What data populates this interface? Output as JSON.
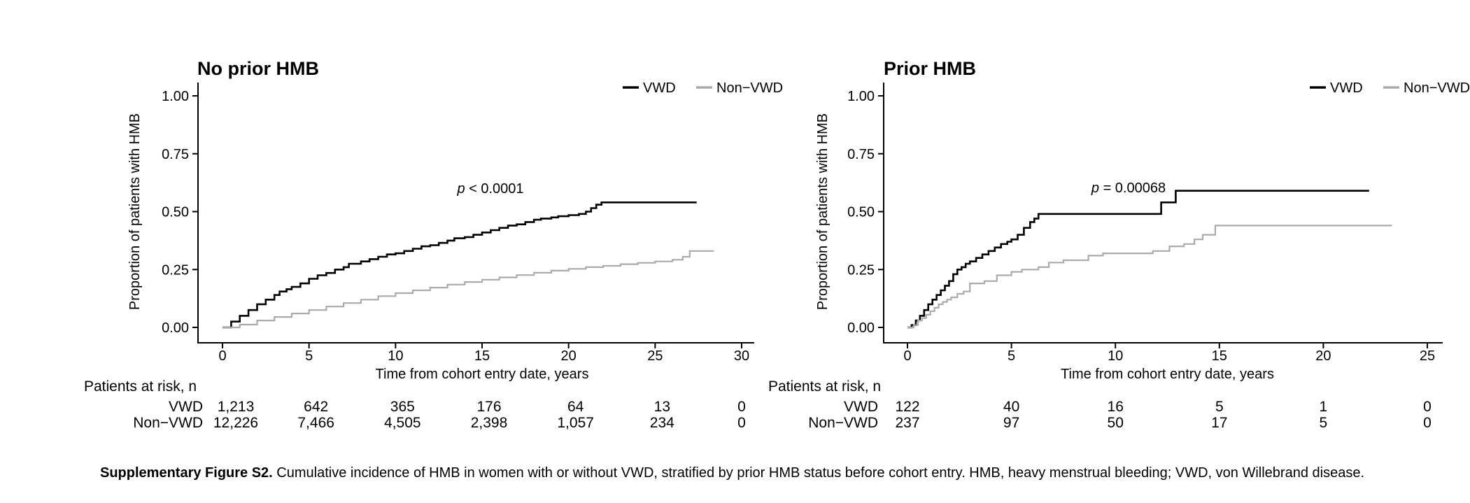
{
  "figure": {
    "caption_bold": "Supplementary Figure S2.",
    "caption_rest": " Cumulative incidence of HMB in women with or without VWD, stratified by prior HMB status before cohort entry. HMB, heavy menstrual bleeding; VWD, von Willebrand disease."
  },
  "colors": {
    "vwd": "#000000",
    "non_vwd": "#aaaaaa",
    "axis": "#000000"
  },
  "chart_data": [
    {
      "type": "line",
      "style": "step",
      "title": "No prior HMB",
      "p_italic": "p",
      "p_rest": " < 0.0001",
      "xlabel": "Time from cohort entry date, years",
      "ylabel": "Proportion of patients with HMB",
      "xlim": [
        0,
        30
      ],
      "ylim": [
        0,
        1
      ],
      "x_ticks": [
        0,
        5,
        10,
        15,
        20,
        25,
        30
      ],
      "y_ticks": [
        0,
        0.25,
        0.5,
        0.75,
        1
      ],
      "y_tick_labels": [
        "0.00",
        "0.25",
        "0.50",
        "0.75",
        "1.00"
      ],
      "legend_position": "top-right",
      "grid": false,
      "series": [
        {
          "name": "VWD",
          "color_key": "vwd",
          "points": [
            [
              0,
              0
            ],
            [
              0.5,
              0.025
            ],
            [
              1,
              0.05
            ],
            [
              1.5,
              0.075
            ],
            [
              2,
              0.1
            ],
            [
              2.5,
              0.12
            ],
            [
              3,
              0.14
            ],
            [
              3.3,
              0.155
            ],
            [
              3.7,
              0.165
            ],
            [
              4,
              0.175
            ],
            [
              4.5,
              0.19
            ],
            [
              5,
              0.21
            ],
            [
              5.5,
              0.225
            ],
            [
              6,
              0.235
            ],
            [
              6.5,
              0.25
            ],
            [
              7,
              0.26
            ],
            [
              7.3,
              0.275
            ],
            [
              8,
              0.285
            ],
            [
              8.5,
              0.295
            ],
            [
              9,
              0.305
            ],
            [
              9.5,
              0.315
            ],
            [
              10,
              0.32
            ],
            [
              10.5,
              0.33
            ],
            [
              11,
              0.34
            ],
            [
              11.5,
              0.35
            ],
            [
              12,
              0.355
            ],
            [
              12.5,
              0.365
            ],
            [
              13,
              0.375
            ],
            [
              13.4,
              0.385
            ],
            [
              14,
              0.39
            ],
            [
              14.5,
              0.4
            ],
            [
              15,
              0.41
            ],
            [
              15.5,
              0.42
            ],
            [
              16,
              0.43
            ],
            [
              16.5,
              0.44
            ],
            [
              17,
              0.445
            ],
            [
              17.5,
              0.455
            ],
            [
              18,
              0.465
            ],
            [
              18.4,
              0.47
            ],
            [
              19,
              0.475
            ],
            [
              19.4,
              0.48
            ],
            [
              20,
              0.485
            ],
            [
              20.6,
              0.49
            ],
            [
              21,
              0.5
            ],
            [
              21.3,
              0.515
            ],
            [
              21.6,
              0.53
            ],
            [
              21.9,
              0.54
            ],
            [
              27.4,
              0.54
            ]
          ]
        },
        {
          "name": "Non−VWD",
          "color_key": "non_vwd",
          "points": [
            [
              0,
              0
            ],
            [
              1,
              0.012
            ],
            [
              2,
              0.03
            ],
            [
              3,
              0.045
            ],
            [
              4,
              0.06
            ],
            [
              5,
              0.075
            ],
            [
              6,
              0.09
            ],
            [
              7,
              0.105
            ],
            [
              8,
              0.12
            ],
            [
              9,
              0.135
            ],
            [
              10,
              0.148
            ],
            [
              11,
              0.16
            ],
            [
              12,
              0.172
            ],
            [
              13,
              0.185
            ],
            [
              14,
              0.196
            ],
            [
              15,
              0.206
            ],
            [
              16,
              0.216
            ],
            [
              17,
              0.226
            ],
            [
              18,
              0.236
            ],
            [
              19,
              0.245
            ],
            [
              20,
              0.253
            ],
            [
              21,
              0.26
            ],
            [
              22,
              0.266
            ],
            [
              23,
              0.273
            ],
            [
              24,
              0.279
            ],
            [
              25,
              0.285
            ],
            [
              26,
              0.292
            ],
            [
              26.6,
              0.305
            ],
            [
              27,
              0.33
            ],
            [
              28.4,
              0.33
            ]
          ]
        }
      ],
      "risk_table": {
        "header": "Patients at risk, n",
        "time_points": [
          0,
          5,
          10,
          15,
          20,
          25,
          30
        ],
        "rows": [
          {
            "name": "VWD",
            "counts": [
              "1,213",
              "642",
              "365",
              "176",
              "64",
              "13",
              "0"
            ]
          },
          {
            "name": "Non−VWD",
            "counts": [
              "12,226",
              "7,466",
              "4,505",
              "2,398",
              "1,057",
              "234",
              "0"
            ]
          }
        ]
      }
    },
    {
      "type": "line",
      "style": "step",
      "title": "Prior HMB",
      "p_italic": "p",
      "p_rest": " = 0.00068",
      "xlabel": "Time from cohort entry date, years",
      "ylabel": "Proportion of patients with HMB",
      "xlim": [
        0,
        25
      ],
      "ylim": [
        0,
        1
      ],
      "x_ticks": [
        0,
        5,
        10,
        15,
        20,
        25
      ],
      "y_ticks": [
        0,
        0.25,
        0.5,
        0.75,
        1
      ],
      "y_tick_labels": [
        "0.00",
        "0.25",
        "0.50",
        "0.75",
        "1.00"
      ],
      "legend_position": "top-right",
      "grid": false,
      "series": [
        {
          "name": "VWD",
          "color_key": "vwd",
          "points": [
            [
              0,
              0
            ],
            [
              0.2,
              0.01
            ],
            [
              0.4,
              0.03
            ],
            [
              0.6,
              0.05
            ],
            [
              0.8,
              0.075
            ],
            [
              1.0,
              0.1
            ],
            [
              1.2,
              0.12
            ],
            [
              1.4,
              0.14
            ],
            [
              1.6,
              0.16
            ],
            [
              1.8,
              0.18
            ],
            [
              2.0,
              0.2
            ],
            [
              2.2,
              0.23
            ],
            [
              2.4,
              0.25
            ],
            [
              2.6,
              0.26
            ],
            [
              2.8,
              0.275
            ],
            [
              3.0,
              0.285
            ],
            [
              3.3,
              0.3
            ],
            [
              3.6,
              0.315
            ],
            [
              3.9,
              0.33
            ],
            [
              4.2,
              0.345
            ],
            [
              4.5,
              0.36
            ],
            [
              4.8,
              0.37
            ],
            [
              5.0,
              0.38
            ],
            [
              5.3,
              0.4
            ],
            [
              5.6,
              0.43
            ],
            [
              5.9,
              0.455
            ],
            [
              6.1,
              0.47
            ],
            [
              6.3,
              0.49
            ],
            [
              12.2,
              0.54
            ],
            [
              12.9,
              0.59
            ],
            [
              22.2,
              0.59
            ]
          ]
        },
        {
          "name": "Non−VWD",
          "color_key": "non_vwd",
          "points": [
            [
              0,
              0
            ],
            [
              0.3,
              0.01
            ],
            [
              0.5,
              0.03
            ],
            [
              0.7,
              0.04
            ],
            [
              0.9,
              0.055
            ],
            [
              1.1,
              0.07
            ],
            [
              1.3,
              0.085
            ],
            [
              1.5,
              0.1
            ],
            [
              1.7,
              0.11
            ],
            [
              1.9,
              0.12
            ],
            [
              2.1,
              0.13
            ],
            [
              2.4,
              0.145
            ],
            [
              2.7,
              0.155
            ],
            [
              3.0,
              0.19
            ],
            [
              3.7,
              0.2
            ],
            [
              4.3,
              0.225
            ],
            [
              5.0,
              0.24
            ],
            [
              5.5,
              0.25
            ],
            [
              6.3,
              0.26
            ],
            [
              6.8,
              0.28
            ],
            [
              7.5,
              0.29
            ],
            [
              8.7,
              0.31
            ],
            [
              9.4,
              0.32
            ],
            [
              11.8,
              0.33
            ],
            [
              12.6,
              0.35
            ],
            [
              13.3,
              0.36
            ],
            [
              13.8,
              0.38
            ],
            [
              14.2,
              0.4
            ],
            [
              14.8,
              0.44
            ],
            [
              23.3,
              0.44
            ]
          ]
        }
      ],
      "risk_table": {
        "header": "Patients at risk, n",
        "time_points": [
          0,
          5,
          10,
          15,
          20,
          25
        ],
        "rows": [
          {
            "name": "VWD",
            "counts": [
              "122",
              "40",
              "16",
              "5",
              "1",
              "0"
            ]
          },
          {
            "name": "Non−VWD",
            "counts": [
              "237",
              "97",
              "50",
              "17",
              "5",
              "0"
            ]
          }
        ]
      }
    }
  ]
}
